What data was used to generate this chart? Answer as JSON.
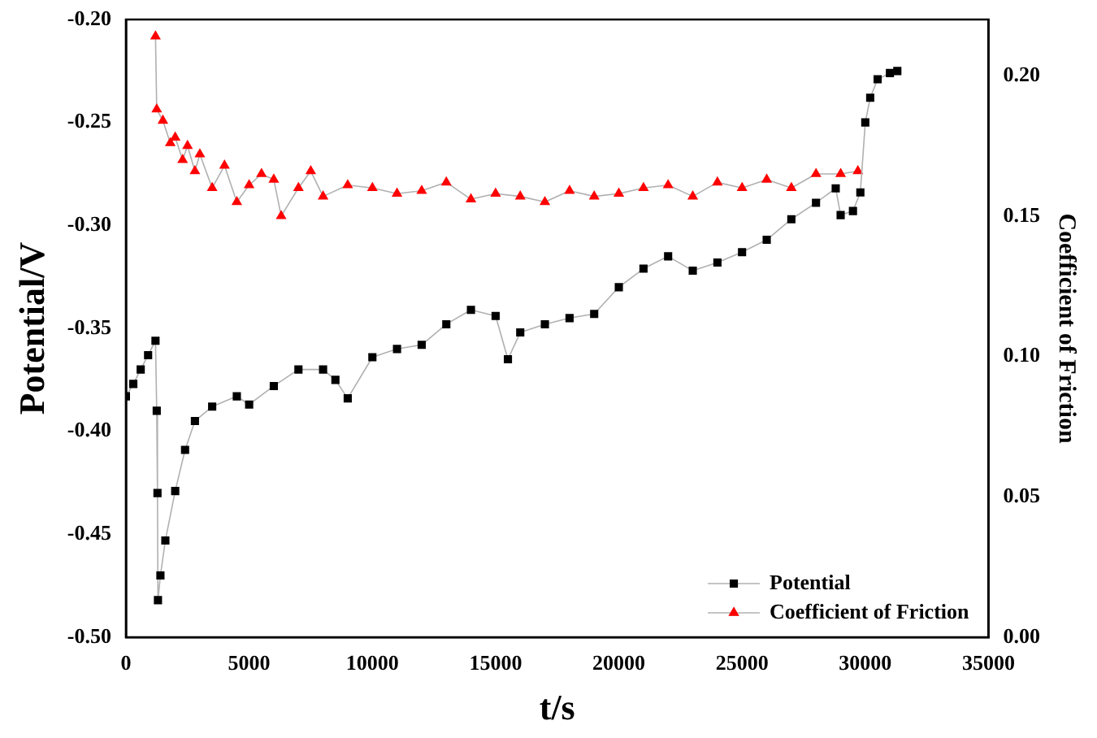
{
  "chart_data": {
    "type": "line",
    "xlabel": "t/s",
    "ylabel": "Potential/V",
    "y2label": "Coefficient of Friction",
    "xlim": [
      0,
      35000
    ],
    "xticks": [
      0,
      5000,
      10000,
      15000,
      20000,
      25000,
      30000,
      35000
    ],
    "ylim": [
      -0.5,
      -0.2
    ],
    "yticks": [
      {
        "value": -0.5,
        "label": "-0.50"
      },
      {
        "value": -0.45,
        "label": "-0.45"
      },
      {
        "value": -0.4,
        "label": "-0.40"
      },
      {
        "value": -0.35,
        "label": "-0.35"
      },
      {
        "value": -0.3,
        "label": "-0.30"
      },
      {
        "value": -0.25,
        "label": "-0.25"
      },
      {
        "value": -0.2,
        "label": "-0.20"
      }
    ],
    "y2lim": [
      0,
      0.22
    ],
    "y2ticks": [
      {
        "value": 0,
        "label": "0.00"
      },
      {
        "value": 0.05,
        "label": "0.05"
      },
      {
        "value": 0.1,
        "label": "0.10"
      },
      {
        "value": 0.15,
        "label": "0.15"
      },
      {
        "value": 0.2,
        "label": "0.20"
      }
    ],
    "legend": "bottom right",
    "grid": false,
    "series": [
      {
        "name": "Potential",
        "color": "#000000",
        "marker": "square",
        "x": [
          0,
          300,
          600,
          900,
          1200,
          1250,
          1280,
          1300,
          1400,
          1600,
          2000,
          2400,
          2800,
          3500,
          4500,
          5000,
          6000,
          7000,
          8000,
          8500,
          9000,
          10000,
          11000,
          12000,
          13000,
          14000,
          15000,
          15500,
          16000,
          17000,
          18000,
          19000,
          20000,
          21000,
          22000,
          23000,
          24000,
          25000,
          26000,
          27000,
          28000,
          28800,
          29000,
          29500,
          29800,
          30000,
          30200,
          30500,
          31000,
          31300
        ],
        "values": [
          -0.383,
          -0.377,
          -0.37,
          -0.363,
          -0.356,
          -0.39,
          -0.43,
          -0.482,
          -0.47,
          -0.453,
          -0.429,
          -0.409,
          -0.395,
          -0.388,
          -0.383,
          -0.387,
          -0.378,
          -0.37,
          -0.37,
          -0.375,
          -0.384,
          -0.364,
          -0.36,
          -0.358,
          -0.348,
          -0.341,
          -0.344,
          -0.365,
          -0.352,
          -0.348,
          -0.345,
          -0.343,
          -0.33,
          -0.321,
          -0.315,
          -0.322,
          -0.318,
          -0.313,
          -0.307,
          -0.297,
          -0.289,
          -0.282,
          -0.295,
          -0.293,
          -0.284,
          -0.25,
          -0.238,
          -0.229,
          -0.226,
          -0.225
        ]
      },
      {
        "name": "Coefficient of Friction",
        "color": "#ff0000",
        "marker": "triangle",
        "axis": "y2",
        "x": [
          1200,
          1250,
          1500,
          1800,
          2000,
          2300,
          2500,
          2800,
          3000,
          3500,
          4000,
          4500,
          5000,
          5500,
          6000,
          6300,
          7000,
          7500,
          8000,
          9000,
          10000,
          11000,
          12000,
          13000,
          14000,
          15000,
          16000,
          17000,
          18000,
          19000,
          20000,
          21000,
          22000,
          23000,
          24000,
          25000,
          26000,
          27000,
          28000,
          29000,
          29700
        ],
        "values": [
          0.214,
          0.188,
          0.184,
          0.176,
          0.178,
          0.17,
          0.175,
          0.166,
          0.172,
          0.16,
          0.168,
          0.155,
          0.161,
          0.165,
          0.163,
          0.15,
          0.16,
          0.166,
          0.157,
          0.161,
          0.16,
          0.158,
          0.159,
          0.162,
          0.156,
          0.158,
          0.157,
          0.155,
          0.159,
          0.157,
          0.158,
          0.16,
          0.161,
          0.157,
          0.162,
          0.16,
          0.163,
          0.16,
          0.165,
          0.165,
          0.166
        ]
      }
    ]
  }
}
